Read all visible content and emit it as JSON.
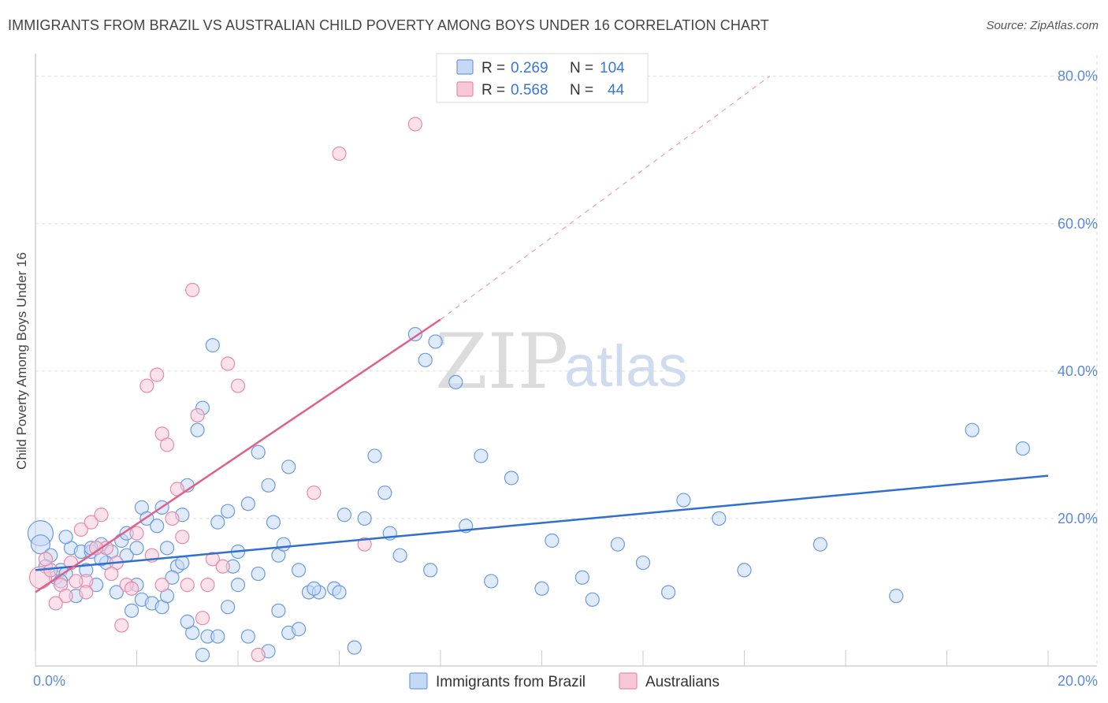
{
  "title": "IMMIGRANTS FROM BRAZIL VS AUSTRALIAN CHILD POVERTY AMONG BOYS UNDER 16 CORRELATION CHART",
  "source": "Source: ZipAtlas.com",
  "watermark": {
    "zip": "ZIP",
    "atlas": "atlas"
  },
  "chart_data": {
    "type": "scatter",
    "ylabel": "Child Poverty Among Boys Under 16",
    "xlim": [
      0,
      20
    ],
    "ylim": [
      0,
      82
    ],
    "x_tick_labels": [
      {
        "value": 0,
        "label": "0.0%"
      },
      {
        "value": 20,
        "label": "20.0%"
      }
    ],
    "y_tick_labels": [
      {
        "value": 20,
        "label": "20.0%"
      },
      {
        "value": 40,
        "label": "40.0%"
      },
      {
        "value": 60,
        "label": "60.0%"
      },
      {
        "value": 80,
        "label": "80.0%"
      }
    ],
    "grid": true,
    "legend_position": "top-center",
    "stats": [
      {
        "r_label": "R = ",
        "r": "0.269",
        "n_label": "N = ",
        "n": "104",
        "color": "#6b9be0",
        "fill": "#c5d8f5"
      },
      {
        "r_label": "R = ",
        "r": "0.568",
        "n_label": "N = ",
        "n": "44",
        "color": "#e88aa8",
        "fill": "#f8c8d8"
      }
    ],
    "series": [
      {
        "name": "Immigrants from Brazil",
        "color": "#6b9be0",
        "fill": "#c5d8f5",
        "trend": {
          "x0": 0,
          "y0": 13.0,
          "x1": 20,
          "y1": 25.8
        },
        "points": [
          [
            0.1,
            18.0
          ],
          [
            0.1,
            16.5
          ],
          [
            0.3,
            15.0
          ],
          [
            0.4,
            12.0
          ],
          [
            0.5,
            13.0
          ],
          [
            0.6,
            12.5
          ],
          [
            0.7,
            16.0
          ],
          [
            0.9,
            15.5
          ],
          [
            1.0,
            13.0
          ],
          [
            1.1,
            15.5
          ],
          [
            1.3,
            16.5
          ],
          [
            1.5,
            15.5
          ],
          [
            1.7,
            17.0
          ],
          [
            1.8,
            15.0
          ],
          [
            2.0,
            16.0
          ],
          [
            2.1,
            21.5
          ],
          [
            2.2,
            20.0
          ],
          [
            2.4,
            19.0
          ],
          [
            2.5,
            21.5
          ],
          [
            2.6,
            16.0
          ],
          [
            2.8,
            13.5
          ],
          [
            2.9,
            20.5
          ],
          [
            3.0,
            24.5
          ],
          [
            3.2,
            32.0
          ],
          [
            3.3,
            35.0
          ],
          [
            3.5,
            43.5
          ],
          [
            3.6,
            19.5
          ],
          [
            3.8,
            21.0
          ],
          [
            4.0,
            15.5
          ],
          [
            4.2,
            22.0
          ],
          [
            4.4,
            29.0
          ],
          [
            4.6,
            24.5
          ],
          [
            4.7,
            19.5
          ],
          [
            4.8,
            15.0
          ],
          [
            4.9,
            16.5
          ],
          [
            5.0,
            27.0
          ],
          [
            5.2,
            13.0
          ],
          [
            5.4,
            10.0
          ],
          [
            5.6,
            10.0
          ],
          [
            5.9,
            10.5
          ],
          [
            6.1,
            20.5
          ],
          [
            6.5,
            20.0
          ],
          [
            6.7,
            28.5
          ],
          [
            6.9,
            23.5
          ],
          [
            7.5,
            45.0
          ],
          [
            7.7,
            41.5
          ],
          [
            7.9,
            44.0
          ],
          [
            8.3,
            38.5
          ],
          [
            8.8,
            28.5
          ],
          [
            9.4,
            25.5
          ],
          [
            10.2,
            17.0
          ],
          [
            10.8,
            12.0
          ],
          [
            11.0,
            9.0
          ],
          [
            12.5,
            10.0
          ],
          [
            12.8,
            22.5
          ],
          [
            13.5,
            20.0
          ],
          [
            14.0,
            13.0
          ],
          [
            15.5,
            16.5
          ],
          [
            17.0,
            9.5
          ],
          [
            18.5,
            32.0
          ],
          [
            19.5,
            29.5
          ],
          [
            0.2,
            13.5
          ],
          [
            0.5,
            11.5
          ],
          [
            0.8,
            9.5
          ],
          [
            1.2,
            11.0
          ],
          [
            1.4,
            14.0
          ],
          [
            1.6,
            10.0
          ],
          [
            1.9,
            7.5
          ],
          [
            2.1,
            9.0
          ],
          [
            2.3,
            8.5
          ],
          [
            2.5,
            8.0
          ],
          [
            2.7,
            12.0
          ],
          [
            2.9,
            14.0
          ],
          [
            3.1,
            4.5
          ],
          [
            3.3,
            1.5
          ],
          [
            3.4,
            4.0
          ],
          [
            3.6,
            4.0
          ],
          [
            3.8,
            8.0
          ],
          [
            4.0,
            11.0
          ],
          [
            4.2,
            4.0
          ],
          [
            4.4,
            12.5
          ],
          [
            4.6,
            2.0
          ],
          [
            4.8,
            7.5
          ],
          [
            5.0,
            4.5
          ],
          [
            5.2,
            5.0
          ],
          [
            5.5,
            10.5
          ],
          [
            6.0,
            10.0
          ],
          [
            6.3,
            2.5
          ],
          [
            7.0,
            18.0
          ],
          [
            7.2,
            15.0
          ],
          [
            7.8,
            13.0
          ],
          [
            8.5,
            19.0
          ],
          [
            9.0,
            11.5
          ],
          [
            10.0,
            10.5
          ],
          [
            11.5,
            16.5
          ],
          [
            12.0,
            14.0
          ],
          [
            0.6,
            17.5
          ],
          [
            1.1,
            16.0
          ],
          [
            1.3,
            14.5
          ],
          [
            1.8,
            18.0
          ],
          [
            2.0,
            11.0
          ],
          [
            2.6,
            9.5
          ],
          [
            3.0,
            6.0
          ],
          [
            3.9,
            13.5
          ]
        ]
      },
      {
        "name": "Australians",
        "color": "#e88aa8",
        "fill": "#f8c8d8",
        "trend": {
          "x0": 0,
          "y0": 10.0,
          "x1": 8.0,
          "y1": 47.0
        },
        "trend_extension": {
          "x0": 8.0,
          "y0": 47.0,
          "x1": 14.5,
          "y1": 80.0
        },
        "points": [
          [
            0.1,
            12.0
          ],
          [
            0.3,
            13.0
          ],
          [
            0.5,
            11.0
          ],
          [
            0.6,
            9.5
          ],
          [
            0.7,
            14.0
          ],
          [
            0.9,
            18.5
          ],
          [
            1.0,
            11.5
          ],
          [
            1.1,
            19.5
          ],
          [
            1.3,
            20.5
          ],
          [
            1.4,
            16.0
          ],
          [
            1.6,
            14.0
          ],
          [
            1.8,
            11.0
          ],
          [
            2.0,
            18.0
          ],
          [
            2.2,
            38.0
          ],
          [
            2.4,
            39.5
          ],
          [
            2.5,
            31.5
          ],
          [
            2.6,
            30.0
          ],
          [
            2.7,
            20.0
          ],
          [
            2.8,
            24.0
          ],
          [
            2.9,
            17.5
          ],
          [
            3.0,
            11.0
          ],
          [
            3.1,
            51.0
          ],
          [
            3.2,
            34.0
          ],
          [
            3.3,
            6.5
          ],
          [
            3.5,
            14.5
          ],
          [
            3.7,
            13.5
          ],
          [
            3.8,
            41.0
          ],
          [
            4.0,
            38.0
          ],
          [
            4.4,
            1.5
          ],
          [
            5.5,
            23.5
          ],
          [
            6.0,
            69.5
          ],
          [
            6.5,
            16.5
          ],
          [
            7.5,
            73.5
          ],
          [
            0.4,
            8.5
          ],
          [
            0.8,
            11.5
          ],
          [
            1.2,
            16.0
          ],
          [
            1.5,
            12.5
          ],
          [
            1.7,
            5.5
          ],
          [
            1.9,
            10.5
          ],
          [
            2.3,
            15.0
          ],
          [
            2.5,
            11.0
          ],
          [
            3.4,
            11.0
          ],
          [
            0.2,
            14.5
          ],
          [
            1.0,
            10.0
          ]
        ]
      }
    ]
  }
}
